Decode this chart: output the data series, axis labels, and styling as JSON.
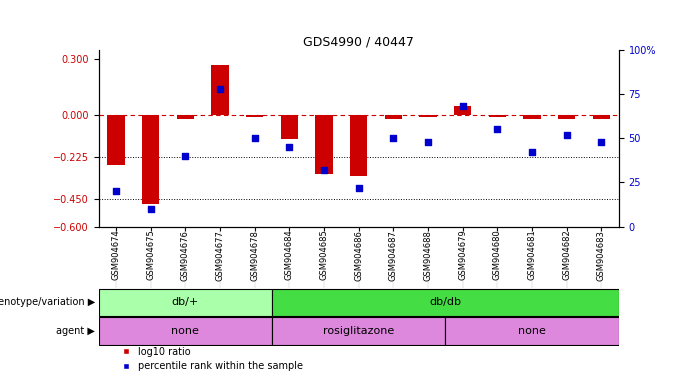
{
  "title": "GDS4990 / 40447",
  "samples": [
    "GSM904674",
    "GSM904675",
    "GSM904676",
    "GSM904677",
    "GSM904678",
    "GSM904684",
    "GSM904685",
    "GSM904686",
    "GSM904687",
    "GSM904688",
    "GSM904679",
    "GSM904680",
    "GSM904681",
    "GSM904682",
    "GSM904683"
  ],
  "log10_ratio": [
    -0.27,
    -0.48,
    -0.02,
    0.27,
    -0.01,
    -0.13,
    -0.32,
    -0.33,
    -0.02,
    -0.01,
    0.05,
    -0.01,
    -0.02,
    -0.02,
    -0.02
  ],
  "percentile_rank": [
    20,
    10,
    40,
    78,
    50,
    45,
    32,
    22,
    50,
    48,
    68,
    55,
    42,
    52,
    48
  ],
  "ylim_left": [
    -0.6,
    0.35
  ],
  "yticks_left": [
    0.3,
    0.0,
    -0.225,
    -0.45,
    -0.6
  ],
  "yticks_right_vals": [
    100,
    75,
    50,
    25,
    0
  ],
  "bar_color": "#cc0000",
  "dot_color": "#0000cc",
  "zero_line_color": "#cc0000",
  "dotted_line_color": "#000000",
  "legend_bar_label": "log10 ratio",
  "legend_dot_label": "percentile rank within the sample",
  "geno_light_green": "#aaffaa",
  "geno_dark_green": "#44dd44",
  "agent_violet": "#dd88dd"
}
